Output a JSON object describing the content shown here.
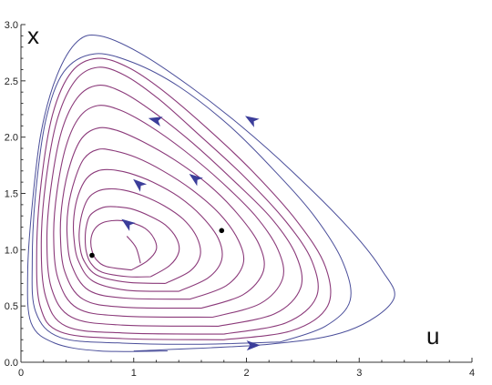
{
  "chart_data": {
    "type": "line",
    "xlabel": "u",
    "ylabel": "x",
    "xlim": [
      0,
      4
    ],
    "ylim": [
      0,
      3
    ],
    "xticks": [
      "0",
      "1",
      "2",
      "3",
      "4"
    ],
    "yticks": [
      "0.0",
      "0.5",
      "1.0",
      "1.5",
      "2.0",
      "2.5",
      "3.0"
    ],
    "xtick_values": [
      0,
      1,
      2,
      3,
      4
    ],
    "ytick_values": [
      0,
      0.5,
      1.0,
      1.5,
      2.0,
      2.5,
      3.0
    ],
    "colors": {
      "inner_orbits": "#8b3a7a",
      "outer_orbits": "#4a4e9a",
      "arrows": "#3b3d9a",
      "points": "#000000"
    },
    "equilibrium_points": [
      {
        "x": 0.63,
        "y": 0.95
      },
      {
        "x": 1.78,
        "y": 1.17
      }
    ],
    "series": [
      {
        "group": "outer",
        "points": [
          [
            1.0,
            0.1
          ],
          [
            2.2,
            0.16
          ],
          [
            2.9,
            0.28
          ],
          [
            3.3,
            0.55
          ],
          [
            3.2,
            0.82
          ],
          [
            2.9,
            1.2
          ],
          [
            2.4,
            1.7
          ],
          [
            1.95,
            2.1
          ],
          [
            1.5,
            2.45
          ],
          [
            1.05,
            2.75
          ],
          [
            0.7,
            2.9
          ],
          [
            0.5,
            2.85
          ],
          [
            0.32,
            2.55
          ],
          [
            0.18,
            2.05
          ],
          [
            0.1,
            1.4
          ],
          [
            0.06,
            0.8
          ],
          [
            0.09,
            0.35
          ],
          [
            0.3,
            0.17
          ],
          [
            0.7,
            0.1
          ],
          [
            1.3,
            0.1
          ]
        ]
      },
      {
        "group": "outer",
        "points": [
          [
            2.3,
            0.18
          ],
          [
            2.7,
            0.32
          ],
          [
            2.92,
            0.55
          ],
          [
            2.85,
            0.9
          ],
          [
            2.6,
            1.3
          ],
          [
            2.25,
            1.7
          ],
          [
            1.85,
            2.1
          ],
          [
            1.4,
            2.45
          ],
          [
            1.0,
            2.66
          ],
          [
            0.65,
            2.74
          ],
          [
            0.38,
            2.58
          ],
          [
            0.22,
            2.15
          ],
          [
            0.13,
            1.5
          ],
          [
            0.1,
            0.9
          ],
          [
            0.13,
            0.45
          ],
          [
            0.35,
            0.22
          ],
          [
            0.9,
            0.17
          ],
          [
            1.6,
            0.16
          ],
          [
            2.3,
            0.18
          ]
        ]
      },
      {
        "group": "inner",
        "points": [
          [
            1.8,
            0.2
          ],
          [
            2.4,
            0.28
          ],
          [
            2.72,
            0.5
          ],
          [
            2.7,
            0.85
          ],
          [
            2.45,
            1.25
          ],
          [
            2.05,
            1.7
          ],
          [
            1.65,
            2.08
          ],
          [
            1.25,
            2.42
          ],
          [
            0.95,
            2.62
          ],
          [
            0.68,
            2.7
          ],
          [
            0.45,
            2.58
          ],
          [
            0.28,
            2.2
          ],
          [
            0.18,
            1.6
          ],
          [
            0.14,
            1.0
          ],
          [
            0.17,
            0.5
          ],
          [
            0.35,
            0.27
          ],
          [
            0.9,
            0.21
          ],
          [
            1.8,
            0.2
          ]
        ]
      },
      {
        "group": "inner",
        "points": [
          [
            1.8,
            0.25
          ],
          [
            2.35,
            0.35
          ],
          [
            2.62,
            0.58
          ],
          [
            2.58,
            0.9
          ],
          [
            2.35,
            1.25
          ],
          [
            1.98,
            1.65
          ],
          [
            1.58,
            2.02
          ],
          [
            1.22,
            2.34
          ],
          [
            0.92,
            2.55
          ],
          [
            0.68,
            2.62
          ],
          [
            0.48,
            2.5
          ],
          [
            0.32,
            2.15
          ],
          [
            0.22,
            1.6
          ],
          [
            0.18,
            1.05
          ],
          [
            0.22,
            0.58
          ],
          [
            0.4,
            0.32
          ],
          [
            0.9,
            0.26
          ],
          [
            1.8,
            0.25
          ]
        ]
      },
      {
        "group": "inner",
        "points": [
          [
            1.75,
            0.32
          ],
          [
            2.25,
            0.43
          ],
          [
            2.48,
            0.66
          ],
          [
            2.44,
            0.95
          ],
          [
            2.22,
            1.28
          ],
          [
            1.88,
            1.62
          ],
          [
            1.52,
            1.95
          ],
          [
            1.18,
            2.22
          ],
          [
            0.9,
            2.4
          ],
          [
            0.68,
            2.46
          ],
          [
            0.5,
            2.35
          ],
          [
            0.36,
            2.05
          ],
          [
            0.27,
            1.58
          ],
          [
            0.23,
            1.1
          ],
          [
            0.27,
            0.66
          ],
          [
            0.45,
            0.4
          ],
          [
            0.9,
            0.33
          ],
          [
            1.75,
            0.32
          ]
        ]
      },
      {
        "group": "inner",
        "points": [
          [
            1.7,
            0.4
          ],
          [
            2.12,
            0.52
          ],
          [
            2.32,
            0.74
          ],
          [
            2.28,
            1.0
          ],
          [
            2.08,
            1.3
          ],
          [
            1.78,
            1.6
          ],
          [
            1.45,
            1.88
          ],
          [
            1.14,
            2.1
          ],
          [
            0.88,
            2.24
          ],
          [
            0.68,
            2.28
          ],
          [
            0.52,
            2.18
          ],
          [
            0.4,
            1.92
          ],
          [
            0.32,
            1.52
          ],
          [
            0.29,
            1.12
          ],
          [
            0.33,
            0.74
          ],
          [
            0.5,
            0.48
          ],
          [
            0.9,
            0.41
          ],
          [
            1.7,
            0.4
          ]
        ]
      },
      {
        "group": "inner",
        "points": [
          [
            1.6,
            0.48
          ],
          [
            1.97,
            0.6
          ],
          [
            2.15,
            0.81
          ],
          [
            2.11,
            1.05
          ],
          [
            1.92,
            1.32
          ],
          [
            1.66,
            1.58
          ],
          [
            1.36,
            1.8
          ],
          [
            1.08,
            1.96
          ],
          [
            0.85,
            2.06
          ],
          [
            0.68,
            2.08
          ],
          [
            0.54,
            1.99
          ],
          [
            0.44,
            1.77
          ],
          [
            0.37,
            1.45
          ],
          [
            0.35,
            1.13
          ],
          [
            0.39,
            0.8
          ],
          [
            0.55,
            0.56
          ],
          [
            0.9,
            0.49
          ],
          [
            1.6,
            0.48
          ]
        ]
      },
      {
        "group": "inner",
        "points": [
          [
            1.5,
            0.56
          ],
          [
            1.82,
            0.68
          ],
          [
            1.97,
            0.87
          ],
          [
            1.93,
            1.08
          ],
          [
            1.76,
            1.32
          ],
          [
            1.52,
            1.53
          ],
          [
            1.26,
            1.7
          ],
          [
            1.02,
            1.82
          ],
          [
            0.82,
            1.88
          ],
          [
            0.68,
            1.89
          ],
          [
            0.56,
            1.81
          ],
          [
            0.48,
            1.63
          ],
          [
            0.42,
            1.38
          ],
          [
            0.41,
            1.12
          ],
          [
            0.45,
            0.86
          ],
          [
            0.6,
            0.64
          ],
          [
            0.92,
            0.57
          ],
          [
            1.5,
            0.56
          ]
        ]
      },
      {
        "group": "inner",
        "points": [
          [
            1.4,
            0.63
          ],
          [
            1.66,
            0.75
          ],
          [
            1.78,
            0.91
          ],
          [
            1.75,
            1.1
          ],
          [
            1.6,
            1.3
          ],
          [
            1.4,
            1.47
          ],
          [
            1.17,
            1.6
          ],
          [
            0.96,
            1.68
          ],
          [
            0.8,
            1.71
          ],
          [
            0.68,
            1.7
          ],
          [
            0.58,
            1.63
          ],
          [
            0.51,
            1.49
          ],
          [
            0.47,
            1.3
          ],
          [
            0.47,
            1.1
          ],
          [
            0.51,
            0.9
          ],
          [
            0.64,
            0.72
          ],
          [
            0.94,
            0.64
          ],
          [
            1.4,
            0.63
          ]
        ]
      },
      {
        "group": "inner",
        "points": [
          [
            1.28,
            0.7
          ],
          [
            1.5,
            0.81
          ],
          [
            1.59,
            0.95
          ],
          [
            1.56,
            1.11
          ],
          [
            1.44,
            1.27
          ],
          [
            1.27,
            1.39
          ],
          [
            1.08,
            1.48
          ],
          [
            0.91,
            1.53
          ],
          [
            0.78,
            1.54
          ],
          [
            0.68,
            1.52
          ],
          [
            0.6,
            1.46
          ],
          [
            0.55,
            1.35
          ],
          [
            0.52,
            1.2
          ],
          [
            0.52,
            1.05
          ],
          [
            0.56,
            0.9
          ],
          [
            0.68,
            0.77
          ],
          [
            0.95,
            0.71
          ],
          [
            1.28,
            0.7
          ]
        ]
      },
      {
        "group": "inner",
        "points": [
          [
            1.15,
            0.76
          ],
          [
            1.32,
            0.86
          ],
          [
            1.4,
            0.98
          ],
          [
            1.38,
            1.1
          ],
          [
            1.28,
            1.22
          ],
          [
            1.14,
            1.3
          ],
          [
            0.99,
            1.36
          ],
          [
            0.86,
            1.38
          ],
          [
            0.75,
            1.38
          ],
          [
            0.67,
            1.35
          ],
          [
            0.61,
            1.3
          ],
          [
            0.58,
            1.21
          ],
          [
            0.57,
            1.1
          ],
          [
            0.58,
            0.98
          ],
          [
            0.62,
            0.88
          ],
          [
            0.72,
            0.8
          ],
          [
            0.95,
            0.76
          ],
          [
            1.15,
            0.76
          ]
        ]
      },
      {
        "group": "inner",
        "points": [
          [
            0.98,
            0.82
          ],
          [
            1.12,
            0.9
          ],
          [
            1.2,
            1.0
          ],
          [
            1.18,
            1.1
          ],
          [
            1.1,
            1.19
          ],
          [
            0.98,
            1.24
          ],
          [
            0.86,
            1.26
          ],
          [
            0.76,
            1.25
          ],
          [
            0.69,
            1.22
          ],
          [
            0.64,
            1.16
          ],
          [
            0.62,
            1.08
          ],
          [
            0.63,
            0.99
          ],
          [
            0.67,
            0.91
          ],
          [
            0.76,
            0.85
          ],
          [
            0.98,
            0.82
          ]
        ]
      },
      {
        "group": "inner",
        "points": [
          [
            1.06,
            0.88
          ],
          [
            1.02,
            1.02
          ],
          [
            0.94,
            1.12
          ]
        ]
      }
    ],
    "arrows": [
      {
        "x": 2.05,
        "y": 0.15,
        "dx": 1,
        "dy": 0.02
      },
      {
        "x": 2.05,
        "y": 2.15,
        "dx": -0.9,
        "dy": 0.55
      },
      {
        "x": 1.2,
        "y": 2.15,
        "dx": -1,
        "dy": 0.25
      },
      {
        "x": 1.55,
        "y": 1.63,
        "dx": -0.8,
        "dy": 0.6
      },
      {
        "x": 1.05,
        "y": 1.58,
        "dx": -0.75,
        "dy": 0.65
      },
      {
        "x": 0.95,
        "y": 1.23,
        "dx": -0.75,
        "dy": 0.55
      }
    ]
  }
}
